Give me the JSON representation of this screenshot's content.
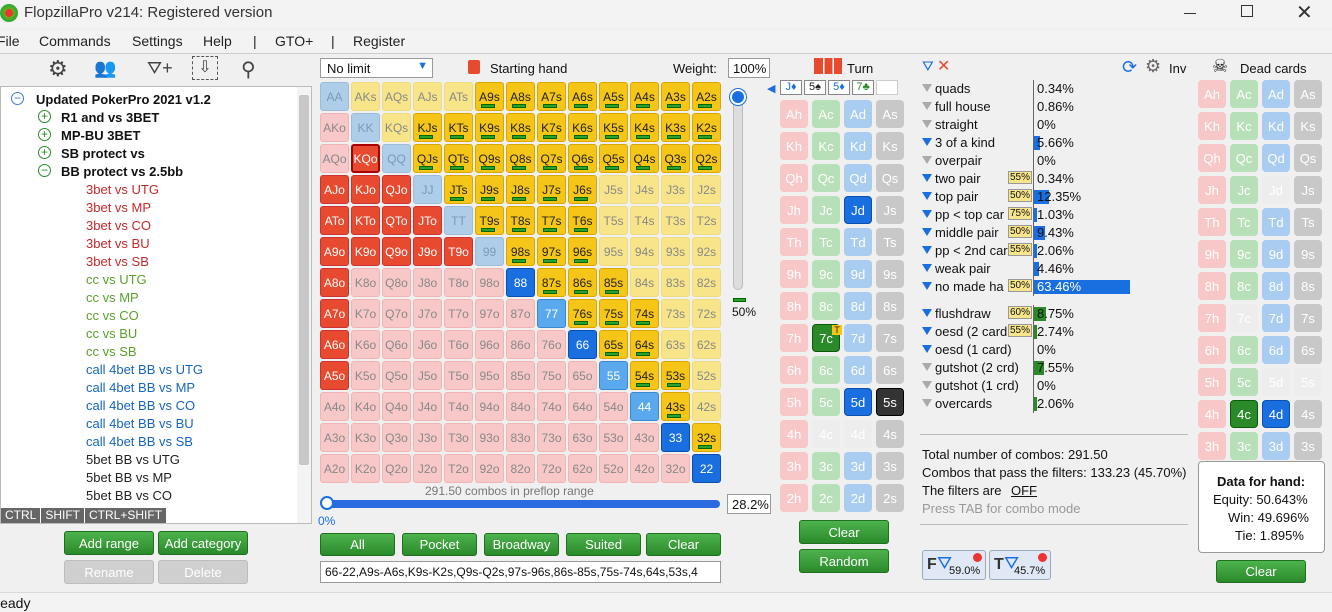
{
  "title": "FlopzillaPro v214: Registered version",
  "menu": [
    "File",
    "Commands",
    "Settings",
    "Help",
    "|",
    "GTO+",
    "|",
    "Register"
  ],
  "status": "Ready",
  "tree": {
    "root": "Updated PokerPro 2021 v1.2",
    "folders": [
      "R1 and vs 3BET",
      "MP-BU 3BET",
      "SB protect vs",
      "BB protect vs 2.5bb"
    ],
    "items": [
      {
        "t": "3bet vs UTG",
        "c": "#c62828"
      },
      {
        "t": "3bet vs MP",
        "c": "#c62828"
      },
      {
        "t": "3bet vs CO",
        "c": "#c62828"
      },
      {
        "t": "3bet vs BU",
        "c": "#c62828"
      },
      {
        "t": "3bet vs SB",
        "c": "#c62828"
      },
      {
        "t": "cc vs UTG",
        "c": "#5aa02c"
      },
      {
        "t": "cc vs MP",
        "c": "#5aa02c"
      },
      {
        "t": "cc vs CO",
        "c": "#5aa02c"
      },
      {
        "t": "cc vs BU",
        "c": "#5aa02c"
      },
      {
        "t": "cc vs SB",
        "c": "#5aa02c"
      },
      {
        "t": "call 4bet BB vs UTG",
        "c": "#1565c0"
      },
      {
        "t": "call 4bet BB vs MP",
        "c": "#1565c0"
      },
      {
        "t": "call 4bet BB vs CO",
        "c": "#1565c0"
      },
      {
        "t": "call 4bet BB vs BU",
        "c": "#1565c0"
      },
      {
        "t": "call 4bet BB vs SB",
        "c": "#1565c0"
      },
      {
        "t": "5bet BB vs UTG",
        "c": "#222"
      },
      {
        "t": "5bet BB vs MP",
        "c": "#222"
      },
      {
        "t": "5bet BB vs CO",
        "c": "#222"
      }
    ],
    "keys": [
      "CTRL",
      "SHIFT",
      "CTRL+SHIFT"
    ],
    "buttons": [
      "Add range",
      "Add category",
      "Rename",
      "Delete"
    ]
  },
  "range": {
    "game": "No limit",
    "starting_hand": "Starting hand",
    "weight_label": "Weight:",
    "weight": "100%",
    "slider_pct": "50%",
    "combos_text": "291.50 combos in preflop range",
    "range_pct": "28.2%",
    "low_pct": "0%",
    "buttons": [
      "All",
      "Pocket",
      "Broadway",
      "Suited",
      "Clear"
    ],
    "range_text": "66-22,A9s-A6s,K9s-K2s,Q9s-Q2s,97s-96s,86s-85s,75s-74s,64s,53s,4",
    "grid": [
      [
        "AA:g",
        "AKs:l",
        "AQs:l",
        "AJs:l",
        "ATs:l",
        "A9s:y",
        "A8s:y",
        "A7s:y",
        "A6s:y",
        "A5s:y",
        "A4s:y",
        "A3s:y",
        "A2s:y"
      ],
      [
        "AKo:p",
        "KK:g",
        "KQs:l",
        "KJs:y",
        "KTs:y",
        "K9s:y",
        "K8s:y",
        "K7s:y",
        "K6s:y",
        "K5s:y",
        "K4s:y",
        "K3s:y",
        "K2s:y"
      ],
      [
        "AQo:p",
        "KQo:k",
        "QQ:g",
        "QJs:y",
        "QTs:y",
        "Q9s:y",
        "Q8s:y",
        "Q7s:y",
        "Q6s:y",
        "Q5s:y",
        "Q4s:y",
        "Q3s:y",
        "Q2s:y"
      ],
      [
        "AJo:r",
        "KJo:r",
        "QJo:r",
        "JJ:g",
        "JTs:y",
        "J9s:y",
        "J8s:y",
        "J7s:y",
        "J6s:y",
        "J5s:l",
        "J4s:l",
        "J3s:l",
        "J2s:l"
      ],
      [
        "ATo:r",
        "KTo:r",
        "QTo:r",
        "JTo:r",
        "TT:g",
        "T9s:y",
        "T8s:y",
        "T7s:y",
        "T6s:y",
        "T5s:l",
        "T4s:l",
        "T3s:l",
        "T2s:l"
      ],
      [
        "A9o:r",
        "K9o:r",
        "Q9o:r",
        "J9o:r",
        "T9o:r",
        "99:g",
        "98s:y",
        "97s:y",
        "96s:y",
        "95s:l",
        "94s:l",
        "93s:l",
        "92s:l"
      ],
      [
        "A8o:r",
        "K8o:p",
        "Q8o:p",
        "J8o:p",
        "T8o:p",
        "98o:p",
        "88:b",
        "87s:y",
        "86s:y",
        "85s:y",
        "84s:l",
        "83s:l",
        "82s:l"
      ],
      [
        "A7o:r",
        "K7o:p",
        "Q7o:p",
        "J7o:p",
        "T7o:p",
        "97o:p",
        "87o:p",
        "77:c",
        "76s:y",
        "75s:y",
        "74s:y",
        "73s:l",
        "72s:l"
      ],
      [
        "A6o:r",
        "K6o:p",
        "Q6o:p",
        "J6o:p",
        "T6o:p",
        "96o:p",
        "86o:p",
        "76o:p",
        "66:b",
        "65s:y",
        "64s:y",
        "63s:l",
        "62s:l"
      ],
      [
        "A5o:r",
        "K5o:p",
        "Q5o:p",
        "J5o:p",
        "T5o:p",
        "95o:p",
        "85o:p",
        "75o:p",
        "65o:p",
        "55:c",
        "54s:y",
        "53s:y",
        "52s:l"
      ],
      [
        "A4o:p",
        "K4o:p",
        "Q4o:p",
        "J4o:p",
        "T4o:p",
        "94o:p",
        "84o:p",
        "74o:p",
        "64o:p",
        "54o:p",
        "44:c",
        "43s:y",
        "42s:l"
      ],
      [
        "A3o:p",
        "K3o:p",
        "Q3o:p",
        "J3o:p",
        "T3o:p",
        "93o:p",
        "83o:p",
        "73o:p",
        "63o:p",
        "53o:p",
        "43o:p",
        "33:b",
        "32s:y"
      ],
      [
        "A2o:p",
        "K2o:p",
        "Q2o:p",
        "J2o:p",
        "T2o:p",
        "92o:p",
        "82o:p",
        "72o:p",
        "62o:p",
        "52o:p",
        "42o:p",
        "32o:p",
        "22:b"
      ]
    ]
  },
  "board": {
    "turn_label": "Turn",
    "cards": [
      "J♦",
      "5♠",
      "5♦",
      "7♣"
    ],
    "clear": "Clear",
    "random": "Random",
    "grid": [
      [
        "Ah:r",
        "Ac:g",
        "Ad:b",
        "As:k"
      ],
      [
        "Kh:r",
        "Kc:g",
        "Kd:b",
        "Ks:k"
      ],
      [
        "Qh:r",
        "Qc:g",
        "Qd:b",
        "Qs:k"
      ],
      [
        "Jh:r",
        "Jc:g",
        "Jd:B",
        "Js:k"
      ],
      [
        "Th:r",
        "Tc:g",
        "Td:b",
        "Ts:k"
      ],
      [
        "9h:r",
        "9c:g",
        "9d:b",
        "9s:k"
      ],
      [
        "8h:r",
        "8c:g",
        "8d:b",
        "8s:k"
      ],
      [
        "7h:r",
        "7c:G",
        "7d:b",
        "7s:k"
      ],
      [
        "6h:r",
        "6c:g",
        "6d:b",
        "6s:k"
      ],
      [
        "5h:r",
        "5c:g",
        "5d:B",
        "5s:K"
      ],
      [
        "4h:r",
        "4c:e",
        "4d:e",
        "4s:k"
      ],
      [
        "3h:r",
        "3c:g",
        "3d:b",
        "3s:k"
      ],
      [
        "2h:r",
        "2c:g",
        "2d:b",
        "2s:k"
      ]
    ]
  },
  "stats": {
    "inv": "Inv",
    "rows": [
      {
        "n": "quads",
        "v": "0.34%",
        "w": 0
      },
      {
        "n": "full house",
        "v": "0.86%",
        "w": 0
      },
      {
        "n": "straight",
        "v": "0%",
        "w": 0
      },
      {
        "n": "3 of a kind",
        "v": "5.66%",
        "w": 0.06,
        "f": 1
      },
      {
        "n": "overpair",
        "v": "0%",
        "w": 0
      },
      {
        "n": "two pair",
        "v": "0.34%",
        "w": 0,
        "b": "55%",
        "f": 1
      },
      {
        "n": "top pair",
        "v": "12.35%",
        "w": 0.16,
        "b": "50%",
        "f": 1
      },
      {
        "n": "pp < top car",
        "v": "1.03%",
        "w": 0.01,
        "b": "75%",
        "f": 1
      },
      {
        "n": "middle pair",
        "v": "9.43%",
        "w": 0.11,
        "b": "50%",
        "f": 1
      },
      {
        "n": "pp < 2nd car",
        "v": "2.06%",
        "w": 0.02,
        "b": "55%",
        "f": 1
      },
      {
        "n": "weak pair",
        "v": "4.46%",
        "w": 0.05,
        "f": 1
      },
      {
        "n": "no made ha",
        "v": "63.46%",
        "w": 1,
        "b": "50%",
        "f": 1
      }
    ],
    "draws": [
      {
        "n": "flushdraw",
        "v": "8.75%",
        "w": 0.12,
        "b": "60%",
        "f": 1
      },
      {
        "n": "oesd (2 card",
        "v": "2.74%",
        "w": 0.03,
        "b": "55%",
        "f": 1
      },
      {
        "n": "oesd (1 card)",
        "v": "0%",
        "w": 0,
        "f": 1
      },
      {
        "n": "gutshot (2 crd)",
        "v": "7.55%",
        "w": 0.1
      },
      {
        "n": "gutshot (1 crd)",
        "v": "0%",
        "w": 0
      },
      {
        "n": "overcards",
        "v": "2.06%",
        "w": 0.02
      }
    ],
    "total": "Total number of combos: 291.50",
    "pass": "Combos that pass the filters: 133.23 (45.70%)",
    "filters_label": "The filters are",
    "filters_state": "OFF",
    "hint": "Press TAB for combo mode",
    "f_pct": "59.0%",
    "t_pct": "45.7%"
  },
  "dead": {
    "label": "Dead cards",
    "clear": "Clear",
    "grid": [
      [
        "Ah:r",
        "Ac:g",
        "Ad:b",
        "As:k"
      ],
      [
        "Kh:r",
        "Kc:g",
        "Kd:b",
        "Ks:k"
      ],
      [
        "Qh:r",
        "Qc:g",
        "Qd:b",
        "Qs:k"
      ],
      [
        "Jh:r",
        "Jc:g",
        "Jd:e",
        "Js:k"
      ],
      [
        "Th:r",
        "Tc:g",
        "Td:b",
        "Ts:k"
      ],
      [
        "9h:r",
        "9c:g",
        "9d:b",
        "9s:k"
      ],
      [
        "8h:r",
        "8c:g",
        "8d:b",
        "8s:k"
      ],
      [
        "7h:r",
        "7c:e",
        "7d:b",
        "7s:k"
      ],
      [
        "6h:r",
        "6c:g",
        "6d:b",
        "6s:k"
      ],
      [
        "5h:r",
        "5c:g",
        "5d:e",
        "5s:e"
      ],
      [
        "4h:r",
        "4c:G",
        "4d:B",
        "4s:k"
      ],
      [
        "3h:r",
        "3c:g",
        "3d:b",
        "3s:k"
      ],
      [
        "2h:r",
        "2c:g",
        "2d:b",
        "2s:k"
      ]
    ],
    "hand_title": "Data for hand:",
    "equity": "Equity: 50.643%",
    "win": "Win: 49.696%",
    "tie": "Tie: 1.895%"
  },
  "colors": {
    "accent": "#2a8a2a",
    "blue": "#1a6fe0"
  }
}
